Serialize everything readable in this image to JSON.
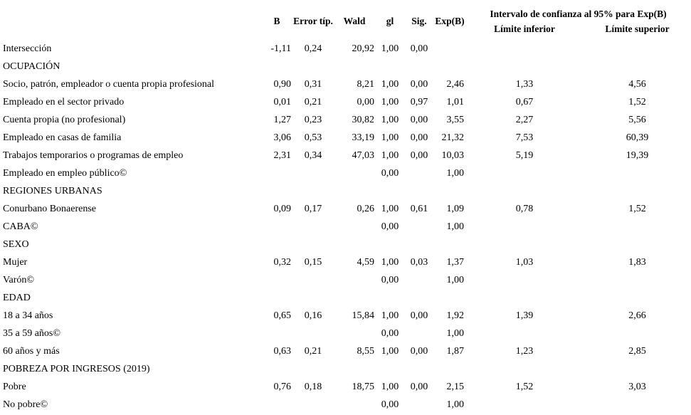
{
  "colors": {
    "text": "#000000",
    "background": "#ffffff"
  },
  "table": {
    "header": {
      "b": "B",
      "se": "Error típ.",
      "wald": "Wald",
      "gl": "gl",
      "sig": "Sig.",
      "exp": "Exp(B)",
      "ci_group": "Intervalo de confianza al 95% para Exp(B)",
      "ci_lower": "Límite inferior",
      "ci_upper": "Límite superior"
    },
    "rows": [
      {
        "kind": "data",
        "label": "Intersección",
        "b": "-1,11",
        "se": "0,24",
        "wald": "20,92",
        "gl": "1,00",
        "sig": "0,00",
        "exp": "",
        "lo": "",
        "hi": ""
      },
      {
        "kind": "section",
        "label": "OCUPACIÓN",
        "b": "",
        "se": "",
        "wald": "",
        "gl": "",
        "sig": "",
        "exp": "",
        "lo": "",
        "hi": ""
      },
      {
        "kind": "data",
        "label": "Socio, patrón, empleador o cuenta propia profesional",
        "b": "0,90",
        "se": "0,31",
        "wald": "8,21",
        "gl": "1,00",
        "sig": "0,00",
        "exp": "2,46",
        "lo": "1,33",
        "hi": "4,56"
      },
      {
        "kind": "data",
        "label": "Empleado en el sector privado",
        "b": "0,01",
        "se": "0,21",
        "wald": "0,00",
        "gl": "1,00",
        "sig": "0,97",
        "exp": "1,01",
        "lo": "0,67",
        "hi": "1,52"
      },
      {
        "kind": "data",
        "label": "Cuenta propia (no profesional)",
        "b": "1,27",
        "se": "0,23",
        "wald": "30,82",
        "gl": "1,00",
        "sig": "0,00",
        "exp": "3,55",
        "lo": "2,27",
        "hi": "5,56"
      },
      {
        "kind": "data",
        "label": "Empleado en casas de familia",
        "b": "3,06",
        "se": "0,53",
        "wald": "33,19",
        "gl": "1,00",
        "sig": "0,00",
        "exp": "21,32",
        "lo": "7,53",
        "hi": "60,39"
      },
      {
        "kind": "data",
        "label": "Trabajos temporarios o programas de empleo",
        "b": "2,31",
        "se": "0,34",
        "wald": "47,03",
        "gl": "1,00",
        "sig": "0,00",
        "exp": "10,03",
        "lo": "5,19",
        "hi": "19,39"
      },
      {
        "kind": "data",
        "label": "Empleado en empleo público©",
        "b": "",
        "se": "",
        "wald": "",
        "gl": "0,00",
        "sig": "",
        "exp": "1,00",
        "lo": "",
        "hi": ""
      },
      {
        "kind": "section",
        "label": "REGIONES URBANAS",
        "b": "",
        "se": "",
        "wald": "",
        "gl": "",
        "sig": "",
        "exp": "",
        "lo": "",
        "hi": ""
      },
      {
        "kind": "data",
        "label": "Conurbano Bonaerense",
        "b": "0,09",
        "se": "0,17",
        "wald": "0,26",
        "gl": "1,00",
        "sig": "0,61",
        "exp": "1,09",
        "lo": "0,78",
        "hi": "1,52"
      },
      {
        "kind": "data",
        "label": "CABA©",
        "b": "",
        "se": "",
        "wald": "",
        "gl": "0,00",
        "sig": "",
        "exp": "1,00",
        "lo": "",
        "hi": ""
      },
      {
        "kind": "section",
        "label": "SEXO",
        "b": "",
        "se": "",
        "wald": "",
        "gl": "",
        "sig": "",
        "exp": "",
        "lo": "",
        "hi": ""
      },
      {
        "kind": "data",
        "label": "Mujer",
        "b": "0,32",
        "se": "0,15",
        "wald": "4,59",
        "gl": "1,00",
        "sig": "0,03",
        "exp": "1,37",
        "lo": "1,03",
        "hi": "1,83"
      },
      {
        "kind": "data",
        "label": "Varón©",
        "b": "",
        "se": "",
        "wald": "",
        "gl": "0,00",
        "sig": "",
        "exp": "1,00",
        "lo": "",
        "hi": ""
      },
      {
        "kind": "section",
        "label": "EDAD",
        "b": "",
        "se": "",
        "wald": "",
        "gl": "",
        "sig": "",
        "exp": "",
        "lo": "",
        "hi": ""
      },
      {
        "kind": "data",
        "label": "18 a 34 años",
        "b": "0,65",
        "se": "0,16",
        "wald": "15,84",
        "gl": "1,00",
        "sig": "0,00",
        "exp": "1,92",
        "lo": "1,39",
        "hi": "2,66"
      },
      {
        "kind": "data",
        "label": "35 a 59 años©",
        "b": "",
        "se": "",
        "wald": "",
        "gl": "0,00",
        "sig": "",
        "exp": "1,00",
        "lo": "",
        "hi": ""
      },
      {
        "kind": "data",
        "label": "60 años y más",
        "b": "0,63",
        "se": "0,21",
        "wald": "8,55",
        "gl": "1,00",
        "sig": "0,00",
        "exp": "1,87",
        "lo": "1,23",
        "hi": "2,85"
      },
      {
        "kind": "section",
        "label": "POBREZA POR INGRESOS (2019)",
        "b": "",
        "se": "",
        "wald": "",
        "gl": "",
        "sig": "",
        "exp": "",
        "lo": "",
        "hi": ""
      },
      {
        "kind": "data",
        "label": "Pobre",
        "b": "0,76",
        "se": "0,18",
        "wald": "18,75",
        "gl": "1,00",
        "sig": "0,00",
        "exp": "2,15",
        "lo": "1,52",
        "hi": "3,03"
      },
      {
        "kind": "data",
        "label": "No pobre©",
        "b": "",
        "se": "",
        "wald": "",
        "gl": "0,00",
        "sig": "",
        "exp": "1,00",
        "lo": "",
        "hi": ""
      }
    ]
  }
}
